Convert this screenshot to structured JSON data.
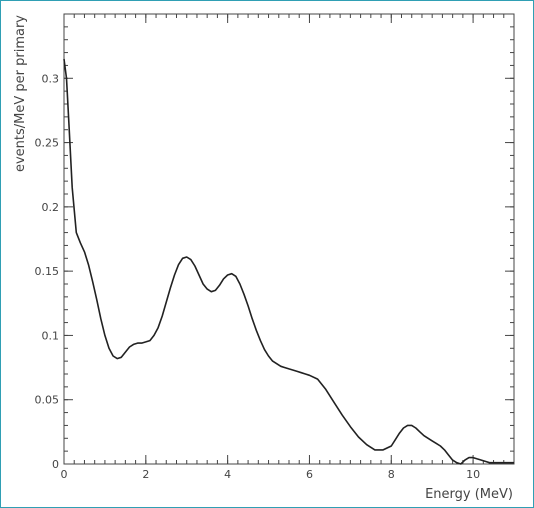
{
  "chart_data": {
    "type": "line",
    "title": "",
    "xlabel": "Energy (MeV)",
    "ylabel": "events/MeV per primary",
    "xlim": [
      0,
      11
    ],
    "ylim": [
      0,
      0.35
    ],
    "xticks": [
      0,
      2,
      4,
      6,
      8,
      10
    ],
    "yticks": [
      0,
      0.05,
      0.1,
      0.15,
      0.2,
      0.25,
      0.3
    ],
    "ytick_labels": [
      "0",
      "0.05",
      "0.1",
      "0.15",
      "0.2",
      "0.25",
      "0.3"
    ],
    "grid": false,
    "line_color": "#222222",
    "axis_color": "#444444",
    "series": [
      {
        "x": [
          0.0,
          0.06,
          0.12,
          0.2,
          0.3,
          0.4,
          0.5,
          0.6,
          0.7,
          0.8,
          0.9,
          1.0,
          1.1,
          1.2,
          1.3,
          1.4,
          1.5,
          1.6,
          1.7,
          1.8,
          1.9,
          2.0,
          2.1,
          2.2,
          2.3,
          2.4,
          2.5,
          2.6,
          2.7,
          2.8,
          2.9,
          3.0,
          3.1,
          3.2,
          3.3,
          3.4,
          3.5,
          3.6,
          3.7,
          3.8,
          3.9,
          4.0,
          4.1,
          4.2,
          4.3,
          4.4,
          4.5,
          4.6,
          4.7,
          4.8,
          4.9,
          5.0,
          5.1,
          5.2,
          5.3,
          5.4,
          5.5,
          5.6,
          5.7,
          5.8,
          5.9,
          6.0,
          6.2,
          6.4,
          6.6,
          6.8,
          7.0,
          7.2,
          7.4,
          7.6,
          7.8,
          8.0,
          8.1,
          8.2,
          8.3,
          8.4,
          8.5,
          8.6,
          8.7,
          8.8,
          8.9,
          9.0,
          9.1,
          9.2,
          9.3,
          9.4,
          9.5,
          9.6,
          9.7,
          9.8,
          9.9,
          10.0,
          10.1,
          10.2,
          10.3,
          10.4,
          10.5,
          10.6,
          10.7,
          10.8,
          10.9,
          11.0
        ],
        "y": [
          0.315,
          0.3,
          0.265,
          0.215,
          0.18,
          0.172,
          0.165,
          0.155,
          0.142,
          0.128,
          0.113,
          0.1,
          0.09,
          0.084,
          0.082,
          0.083,
          0.087,
          0.091,
          0.093,
          0.094,
          0.094,
          0.095,
          0.096,
          0.1,
          0.106,
          0.115,
          0.126,
          0.137,
          0.147,
          0.155,
          0.16,
          0.161,
          0.159,
          0.154,
          0.147,
          0.14,
          0.136,
          0.134,
          0.135,
          0.139,
          0.144,
          0.147,
          0.148,
          0.146,
          0.14,
          0.132,
          0.123,
          0.113,
          0.104,
          0.096,
          0.089,
          0.084,
          0.08,
          0.078,
          0.076,
          0.075,
          0.074,
          0.073,
          0.072,
          0.071,
          0.07,
          0.069,
          0.066,
          0.058,
          0.048,
          0.038,
          0.029,
          0.021,
          0.015,
          0.011,
          0.011,
          0.014,
          0.019,
          0.024,
          0.028,
          0.03,
          0.03,
          0.028,
          0.025,
          0.022,
          0.02,
          0.018,
          0.016,
          0.014,
          0.011,
          0.007,
          0.003,
          0.001,
          0.0,
          0.003,
          0.005,
          0.005,
          0.004,
          0.003,
          0.002,
          0.001,
          0.001,
          0.001,
          0.001,
          0.001,
          0.001,
          0.001
        ]
      }
    ]
  }
}
